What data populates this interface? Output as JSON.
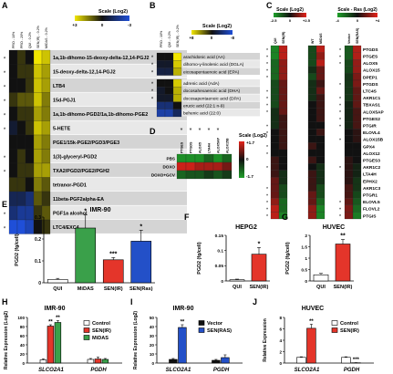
{
  "colors": {
    "control": "#ffffff",
    "senir": "#e4352a",
    "midas": "#3aa04a",
    "senras": "#2350c8",
    "black": "#111111",
    "lightrow": "#e8e8e8",
    "darkrow": "#d4d4d4",
    "errbar": "#000000"
  },
  "chart_data": [
    {
      "id": "A",
      "type": "heatmap",
      "panel": "A",
      "scale_title": "Scale (Log2)",
      "scale_ticks": [
        "+3",
        "0",
        "-3"
      ],
      "columns": [
        "PRO - 10%",
        "PRO - 20%",
        "QUI - 0.2%",
        "SEN(IR) - 0.2%",
        "MIDAS - 0.2%"
      ],
      "column_groups": [
        {
          "label": "PRO",
          "cols": [
            0,
            1
          ]
        },
        {
          "label": "QUI",
          "cols": [
            2
          ]
        },
        {
          "label": "SEN(IR)",
          "cols": [
            3
          ]
        },
        {
          "label": "MIDAS",
          "cols": [
            4
          ]
        }
      ],
      "rows": [
        "1a,1b-dihomo-15-deoxy-delta-12,14-PGJ2",
        "15-deoxy-delta-12,14-PGJ2",
        "LTB4",
        "15d-PGJ1",
        "1a,1b-dihomo-PGD2/1a,1b-dihomo-PGE2",
        "5-HETE",
        "PGE1/15k-PGE2/PGD3/PGE3",
        "1(3)-glyceryl-PGD2",
        "TXA2/PGD2/PGE2/PGH2",
        "tetranor-PGD1",
        "11beta-PGF2alpha-EA",
        "PGF1a alcohol",
        "LTC4/EXC4"
      ],
      "row_marks": [
        "*",
        "*",
        "*",
        "*",
        "*",
        "*",
        "",
        "*",
        "*",
        "",
        "",
        "*",
        "*"
      ],
      "values": [
        [
          0,
          0.5,
          0,
          3,
          2.5
        ],
        [
          0,
          0.5,
          0.5,
          2.5,
          2
        ],
        [
          0,
          0,
          0.5,
          2.5,
          2
        ],
        [
          0.5,
          1,
          1,
          2.5,
          1.5
        ],
        [
          0,
          0.5,
          0.5,
          2,
          1.5
        ],
        [
          -0.5,
          0,
          0.5,
          2.5,
          2
        ],
        [
          0,
          0,
          0,
          2,
          1.5
        ],
        [
          0,
          0.5,
          0,
          2,
          1.5
        ],
        [
          0,
          0.5,
          0.5,
          2,
          2
        ],
        [
          0.5,
          0.5,
          0,
          1.5,
          1
        ],
        [
          -1,
          -1,
          -1.5,
          1,
          0.5
        ],
        [
          -1.5,
          -2,
          -2,
          0.5,
          1
        ],
        [
          -3,
          -3,
          -2.5,
          0,
          0.5
        ]
      ]
    },
    {
      "id": "B",
      "type": "heatmap",
      "panel": "B",
      "scale_title": "Scale (Log2)",
      "scale_ticks": [
        "+8",
        "0",
        "-8"
      ],
      "columns": [
        "PRO - 10%",
        "QUI - 0.2%",
        "SEN(IR) - 0.2%"
      ],
      "column_groups": [
        {
          "label": "PRO",
          "cols": [
            0
          ]
        },
        {
          "label": "QUI",
          "cols": [
            1
          ]
        },
        {
          "label": "SEN(IR)",
          "cols": [
            2
          ]
        }
      ],
      "rows": [
        "arachidonic acid (AA)",
        "dihomo-γ-linolenic acid (DGLA)",
        "eicosapentaenoic acid (EPA)",
        "adrenic acid (AdA)",
        "docosahexaenoic acid (DHA)",
        "docosapentaenoic acid (DPA)",
        "erucic acid (22:1 n-9)",
        "behenic acid (22:0)"
      ],
      "row_marks": [
        "*",
        "*",
        "*",
        "*",
        "*",
        "*",
        "",
        ""
      ],
      "values": [
        [
          0,
          0,
          8
        ],
        [
          -1,
          -1,
          7
        ],
        [
          -2,
          -2,
          6
        ],
        [
          0,
          0,
          7
        ],
        [
          -1,
          0,
          6
        ],
        [
          -1,
          -1,
          6
        ],
        [
          -4,
          -4,
          0
        ],
        [
          -6,
          -6,
          -3
        ]
      ]
    },
    {
      "id": "C",
      "type": "heatmap",
      "panel": "C",
      "scale_title_left": "Scale (Log2)",
      "scale_ticks_left": [
        "-2.5",
        "0",
        "+2.5"
      ],
      "scale_title_right": "Scale - Ras (Log2)",
      "scale_ticks_right": [
        "-4",
        "0",
        "+4"
      ],
      "columns": [
        "QUI",
        "SEN(IR)",
        "WT",
        "MiDAS",
        "Vector",
        "SEN(RAS)"
      ],
      "rows": [
        "PTGDS",
        "PTGES",
        "ALOX5",
        "ALOX15",
        "DPEP1",
        "PTGDS",
        "LTC4S",
        "AKR1C1",
        "TBXAS1",
        "ALOX5AP",
        "PTGES2",
        "PTGIR",
        "ELOVL4",
        "ALOX15B",
        "GPX4",
        "ALOX12",
        "PTGES3",
        "AKR1C2",
        "LTA4H",
        "EPHX2",
        "AKR1C3",
        "PTGR1",
        "ELOVL5",
        "FLOVL2",
        "PTGIS"
      ],
      "row_marks": [
        "*",
        "*",
        "*",
        "*",
        "*",
        "",
        "*",
        "*",
        "*",
        "*",
        "",
        "*",
        "*",
        "",
        "*",
        "*",
        "",
        "*",
        "",
        "",
        "*",
        "*",
        "*",
        "*",
        "*"
      ],
      "row_marks_right": [
        "*",
        "*",
        "*",
        "",
        "",
        "*",
        "",
        "*",
        "*",
        "*",
        "*",
        "*",
        "",
        "*",
        "",
        "",
        "",
        "*",
        "",
        "",
        "",
        "",
        "*",
        "*",
        "*"
      ],
      "values": [
        [
          -2,
          2,
          -1,
          2,
          -2,
          3
        ],
        [
          -2,
          2,
          -1,
          1.5,
          -2,
          3
        ],
        [
          -1.5,
          1.5,
          -1,
          2,
          -1.5,
          2.5
        ],
        [
          -1.5,
          1.5,
          -0.5,
          1,
          -1.5,
          2.5
        ],
        [
          -1.5,
          1.5,
          -1,
          1,
          -1,
          2
        ],
        [
          -1,
          1,
          -0.5,
          0.5,
          -1,
          2
        ],
        [
          -1,
          1,
          -0.5,
          1,
          -1,
          1.5
        ],
        [
          -1,
          1,
          -0.5,
          0.5,
          -1,
          1.5
        ],
        [
          -1,
          1,
          0,
          0.5,
          -0.5,
          1.5
        ],
        [
          -0.5,
          1,
          0,
          0.5,
          -0.5,
          1
        ],
        [
          -0.5,
          0.5,
          0,
          0.5,
          -0.5,
          1
        ],
        [
          -0.5,
          0.5,
          0,
          0,
          -0.5,
          1
        ],
        [
          0,
          0.5,
          0,
          0.5,
          0,
          0.5
        ],
        [
          0,
          0.5,
          0,
          0,
          0,
          0.5
        ],
        [
          0,
          0.5,
          0.5,
          0,
          0,
          0
        ],
        [
          0,
          0,
          0,
          0,
          0,
          0
        ],
        [
          0.5,
          0,
          0.5,
          0,
          0.5,
          0
        ],
        [
          0.5,
          0,
          0,
          -0.5,
          0.5,
          -0.5
        ],
        [
          0.5,
          -0.5,
          0.5,
          -0.5,
          0.5,
          -0.5
        ],
        [
          1,
          -0.5,
          0.5,
          -0.5,
          0.5,
          -1
        ],
        [
          1,
          -1,
          0.5,
          -1,
          1,
          -1
        ],
        [
          1,
          -1,
          1,
          -1,
          1,
          -1.5
        ],
        [
          1.5,
          -1.5,
          1,
          -1.5,
          1.5,
          -2
        ],
        [
          2,
          -1.5,
          1.5,
          -2,
          2,
          -2.5
        ],
        [
          2,
          -2,
          1.5,
          -2,
          2,
          -3
        ]
      ]
    },
    {
      "id": "D",
      "type": "heatmap",
      "panel": "D",
      "scale_title": "Scale (Log2)",
      "scale_ticks": [
        "+1.7",
        "0",
        "-1.7"
      ],
      "columns": [
        "PTGES",
        "PTGDS",
        "ALOX5",
        "LTA4H",
        "ALOX5AP",
        "ALOX15B"
      ],
      "col_marks": [
        "*",
        "*",
        "*",
        "*",
        "*",
        ""
      ],
      "rows": [
        "PBS",
        "DOXO",
        "DOXO+GCV"
      ],
      "values": [
        [
          -1.5,
          -1.5,
          -1.5,
          -1,
          -1.5,
          -1
        ],
        [
          1.5,
          1.5,
          1.2,
          1.2,
          1.2,
          0.8
        ],
        [
          -1,
          -0.8,
          -0.8,
          -0.5,
          -0.8,
          -0.5
        ]
      ]
    },
    {
      "id": "E",
      "type": "bar",
      "panel": "E",
      "title": "IMR-90",
      "ylabel": "PGD2 (fg/cell)",
      "ylim": [
        0,
        0.3
      ],
      "yticks": [
        0,
        0.1,
        0.2,
        0.3
      ],
      "categories": [
        "QUI",
        "MiDAS",
        "SEN(IR)",
        "SEN(Ras)"
      ],
      "values": [
        0.015,
        0.25,
        0.105,
        0.19
      ],
      "errors": [
        0.005,
        0.06,
        0.01,
        0.05
      ],
      "colors": [
        "#ffffff",
        "#3aa04a",
        "#e4352a",
        "#2350c8"
      ],
      "marks": [
        "",
        "*",
        "***",
        "*"
      ]
    },
    {
      "id": "F",
      "type": "bar",
      "panel": "F",
      "title": "HEPG2",
      "ylabel": "PGD2 (fg/cell)",
      "ylim": [
        0,
        0.15
      ],
      "yticks": [
        0,
        0.05,
        0.1,
        0.15
      ],
      "categories": [
        "QUI",
        "SEN(IR)"
      ],
      "values": [
        0.004,
        0.088
      ],
      "errors": [
        0.002,
        0.022
      ],
      "colors": [
        "#ffffff",
        "#e4352a"
      ],
      "marks": [
        "",
        "*"
      ]
    },
    {
      "id": "G",
      "type": "bar",
      "panel": "G",
      "title": "HUVEC",
      "ylabel": "PGD2 (fg/cell)",
      "ylim": [
        0,
        2.0
      ],
      "yticks": [
        0,
        0.5,
        1.0,
        1.5,
        2.0
      ],
      "categories": [
        "QUI",
        "SEN(IR)"
      ],
      "values": [
        0.27,
        1.62
      ],
      "errors": [
        0.06,
        0.2
      ],
      "colors": [
        "#ffffff",
        "#e4352a"
      ],
      "marks": [
        "",
        "**"
      ]
    },
    {
      "id": "H",
      "type": "bar",
      "panel": "H",
      "title": "IMR-90",
      "ylabel": "Relative Expression (Log2)",
      "ylim": [
        0,
        100
      ],
      "yticks": [
        0,
        20,
        40,
        60,
        80,
        100
      ],
      "categories": [
        "SLCO2A1",
        "PGDH"
      ],
      "series": [
        {
          "name": "Control",
          "values": [
            7,
            8
          ],
          "errors": [
            2,
            2
          ],
          "color": "#ffffff"
        },
        {
          "name": "SEN(IR)",
          "values": [
            81,
            9
          ],
          "errors": [
            3,
            4
          ],
          "color": "#e4352a"
        },
        {
          "name": "MiDAS",
          "values": [
            89,
            8
          ],
          "errors": [
            4,
            2
          ],
          "color": "#3aa04a"
        }
      ],
      "marks": [
        [
          "",
          "**",
          "**"
        ],
        [
          "",
          "",
          ""
        ]
      ]
    },
    {
      "id": "I",
      "type": "bar",
      "panel": "I",
      "title": "IMR-90",
      "ylabel": "Relative Expression (Log2)",
      "ylim": [
        0,
        50
      ],
      "yticks": [
        0,
        10,
        20,
        30,
        40,
        50
      ],
      "categories": [
        "SLCO2A1",
        "PGDH"
      ],
      "series": [
        {
          "name": "Vector",
          "values": [
            4,
            3
          ],
          "errors": [
            1,
            1
          ],
          "color": "#111111"
        },
        {
          "name": "SEN(RAS)",
          "values": [
            39,
            6
          ],
          "errors": [
            3,
            3
          ],
          "color": "#2350c8"
        }
      ],
      "marks": [
        [
          "",
          "**"
        ],
        [
          "",
          ""
        ]
      ]
    },
    {
      "id": "J",
      "type": "bar",
      "panel": "J",
      "title": "HUVEC",
      "ylabel": "Relative Expression",
      "ylim": [
        0,
        8
      ],
      "yticks": [
        0,
        2,
        4,
        6,
        8
      ],
      "categories": [
        "SLCO2A1",
        "PGDH"
      ],
      "series": [
        {
          "name": "Control",
          "values": [
            1,
            1
          ],
          "errors": [
            0.1,
            0.1
          ],
          "color": "#ffffff"
        },
        {
          "name": "SEN(IR)",
          "values": [
            6.1,
            0.05
          ],
          "errors": [
            0.7,
            0.02
          ],
          "color": "#e4352a"
        }
      ],
      "marks": [
        [
          "",
          "**"
        ],
        [
          "",
          "***"
        ]
      ]
    }
  ]
}
